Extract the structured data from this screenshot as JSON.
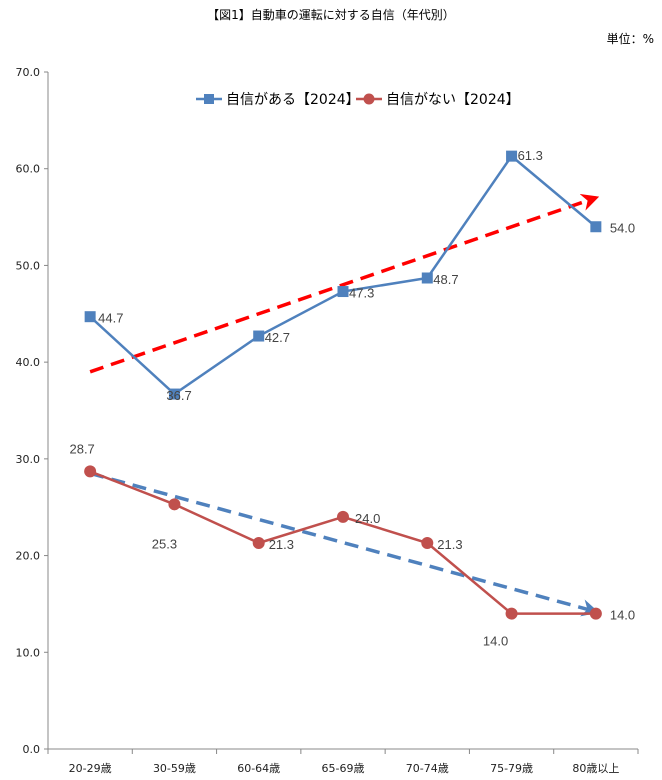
{
  "header": {
    "title": "【図1】自動車の運転に対する自信（年代別）",
    "unit": "単位：%"
  },
  "chart_data": {
    "type": "line",
    "categories": [
      "20-29歳",
      "30-59歳",
      "60-64歳",
      "65-69歳",
      "70-74歳",
      "75-79歳",
      "80歳以上"
    ],
    "ylim": [
      0,
      70
    ],
    "yticks": [
      "0.0",
      "10.0",
      "20.0",
      "30.0",
      "40.0",
      "50.0",
      "60.0",
      "70.0"
    ],
    "grid": false,
    "legend_position": "top",
    "series": [
      {
        "name": "自信がある【2024】",
        "color": "#4f81bd",
        "marker": "square",
        "values": [
          44.7,
          36.7,
          42.7,
          47.3,
          48.7,
          61.3,
          54.0
        ],
        "labels": [
          "44.7",
          "36.7",
          "42.7",
          "47.3",
          "48.7",
          "61.3",
          "54.0"
        ]
      },
      {
        "name": "自信がない【2024】",
        "color": "#c0504d",
        "marker": "circle",
        "values": [
          28.7,
          25.3,
          21.3,
          24.0,
          21.3,
          14.0,
          14.0
        ],
        "labels": [
          "28.7",
          "25.3",
          "21.3",
          "24.0",
          "21.3",
          "14.0",
          "14.0"
        ]
      }
    ],
    "trend_arrows": [
      {
        "color": "#ff0000",
        "from": [
          0,
          39.0
        ],
        "to": [
          6,
          57.0
        ]
      },
      {
        "color": "#4f81bd",
        "from": [
          0,
          28.5
        ],
        "to": [
          6,
          14.2
        ]
      }
    ]
  }
}
